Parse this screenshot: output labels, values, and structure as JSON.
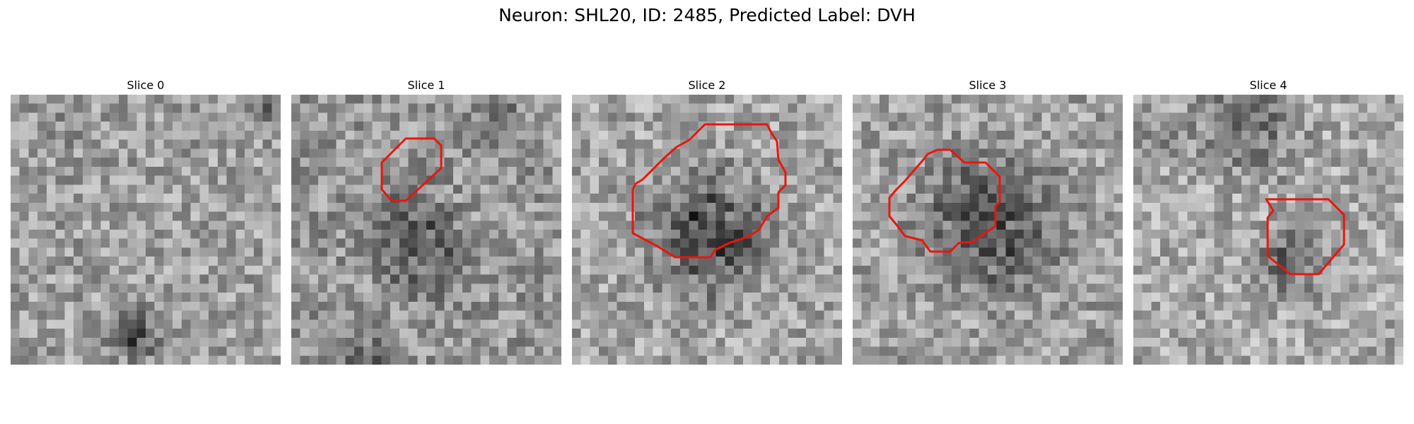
{
  "figure": {
    "title": "Neuron: SHL20, ID: 2485, Predicted Label: DVH"
  },
  "slices": [
    {
      "title": "Slice 0",
      "has_contour": false
    },
    {
      "title": "Slice 1",
      "has_contour": true
    },
    {
      "title": "Slice 2",
      "has_contour": true
    },
    {
      "title": "Slice 3",
      "has_contour": true
    },
    {
      "title": "Slice 4",
      "has_contour": true
    }
  ],
  "colors": {
    "contour": "#e8160f"
  }
}
